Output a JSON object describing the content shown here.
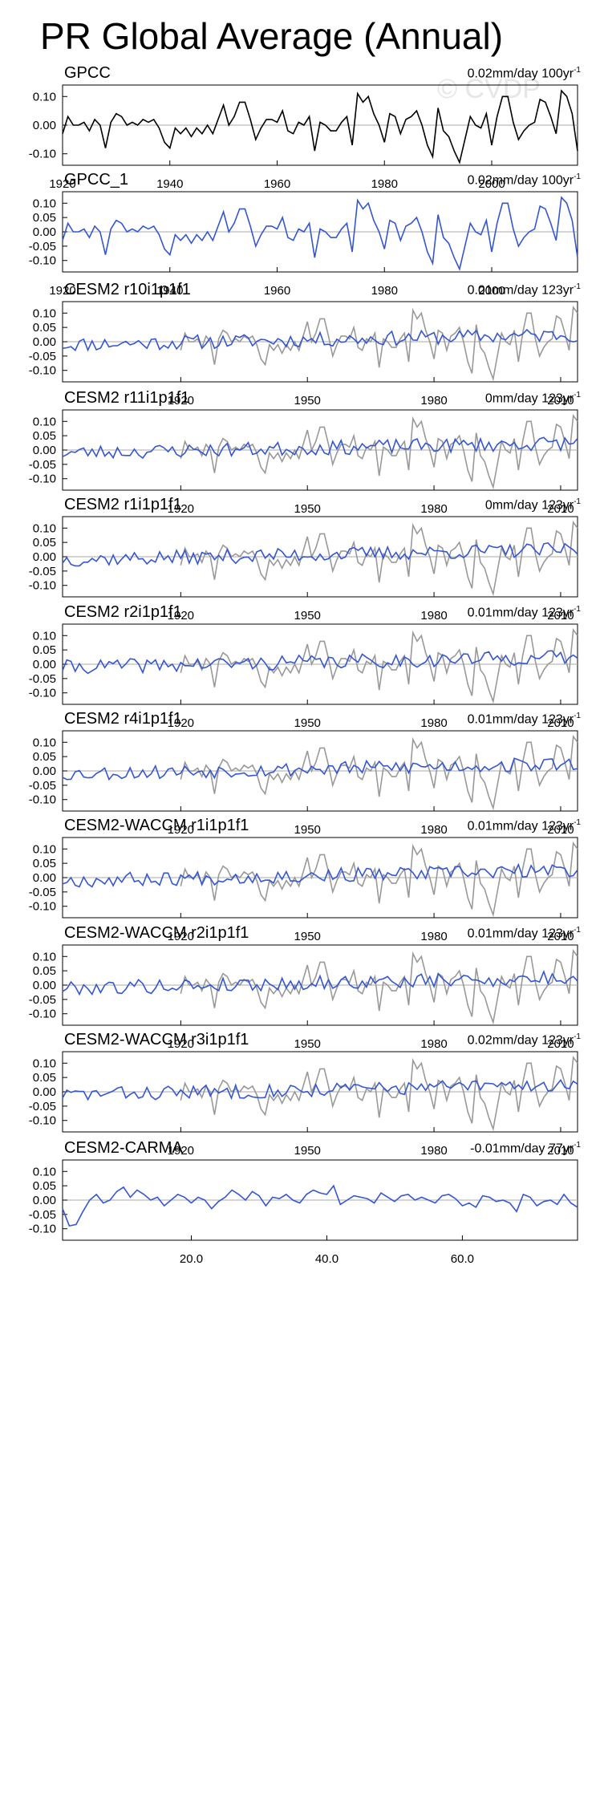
{
  "title": "PR Global Average (Annual)",
  "watermark": "© CVDP",
  "colors": {
    "model": "#3556d1",
    "obs": "#999999",
    "obs_first": "#000000",
    "zero": "#aaaaaa"
  },
  "chart_data": [
    {
      "type": "line",
      "title": "GPCC",
      "trend": "0.02mm/day 100yr",
      "trend_sup": "-1",
      "x_start": 1920,
      "x_end": 2016,
      "ylim": [
        -0.14,
        0.14
      ],
      "yticks": [
        "0.10",
        "0.00",
        "-0.10"
      ],
      "ytick_values": [
        0.1,
        0.0,
        -0.1
      ],
      "xticks": [
        "1920",
        "1940",
        "1960",
        "1980",
        "2000"
      ],
      "xtick_values": [
        1920,
        1940,
        1960,
        1980,
        2000
      ],
      "series": [
        {
          "name": "GPCC",
          "color": "obs_first",
          "values": []
        }
      ]
    },
    {
      "type": "line",
      "title": "GPCC_1",
      "trend": "0.02mm/day 100yr",
      "trend_sup": "-1",
      "x_start": 1920,
      "x_end": 2016,
      "ylim": [
        -0.14,
        0.14
      ],
      "yticks": [
        "0.10",
        "0.05",
        "0.00",
        "-0.05",
        "-0.10"
      ],
      "ytick_values": [
        0.1,
        0.05,
        0.0,
        -0.05,
        -0.1
      ],
      "xticks": [
        "1920",
        "1940",
        "1960",
        "1980",
        "2000"
      ],
      "xtick_values": [
        1920,
        1940,
        1960,
        1980,
        2000
      ],
      "series": [
        {
          "name": "GPCC_1",
          "color": "model",
          "values": []
        }
      ]
    },
    {
      "type": "line",
      "title": "CESM2 r10i1p1f1",
      "trend": "0.01mm/day 123yr",
      "trend_sup": "-1",
      "x_start": 1892,
      "x_end": 2014,
      "ylim": [
        -0.14,
        0.14
      ],
      "yticks": [
        "0.10",
        "0.05",
        "0.00",
        "-0.05",
        "-0.10"
      ],
      "ytick_values": [
        0.1,
        0.05,
        0.0,
        -0.05,
        -0.1
      ],
      "xticks": [
        "1920",
        "1950",
        "1980",
        "2010"
      ],
      "xtick_values": [
        1920,
        1950,
        1980,
        2010
      ],
      "series": [
        {
          "name": "GPCC",
          "color": "obs",
          "values": []
        },
        {
          "name": "CESM2 r10i1p1f1",
          "color": "model",
          "values": []
        }
      ]
    },
    {
      "type": "line",
      "title": "CESM2 r11i1p1f1",
      "trend": "0mm/day 123yr",
      "trend_sup": "-1",
      "x_start": 1892,
      "x_end": 2014,
      "ylim": [
        -0.14,
        0.14
      ],
      "yticks": [
        "0.10",
        "0.05",
        "0.00",
        "-0.05",
        "-0.10"
      ],
      "ytick_values": [
        0.1,
        0.05,
        0.0,
        -0.05,
        -0.1
      ],
      "xticks": [
        "1920",
        "1950",
        "1980",
        "2010"
      ],
      "xtick_values": [
        1920,
        1950,
        1980,
        2010
      ],
      "series": [
        {
          "name": "GPCC",
          "color": "obs",
          "values": []
        },
        {
          "name": "CESM2 r11i1p1f1",
          "color": "model",
          "values": []
        }
      ]
    },
    {
      "type": "line",
      "title": "CESM2 r1i1p1f1",
      "trend": "0mm/day 123yr",
      "trend_sup": "-1",
      "x_start": 1892,
      "x_end": 2014,
      "ylim": [
        -0.14,
        0.14
      ],
      "yticks": [
        "0.10",
        "0.05",
        "0.00",
        "-0.05",
        "-0.10"
      ],
      "ytick_values": [
        0.1,
        0.05,
        0.0,
        -0.05,
        -0.1
      ],
      "xticks": [
        "1920",
        "1950",
        "1980",
        "2010"
      ],
      "xtick_values": [
        1920,
        1950,
        1980,
        2010
      ],
      "series": [
        {
          "name": "GPCC",
          "color": "obs",
          "values": []
        },
        {
          "name": "CESM2 r1i1p1f1",
          "color": "model",
          "values": []
        }
      ]
    },
    {
      "type": "line",
      "title": "CESM2 r2i1p1f1",
      "trend": "0.01mm/day 123yr",
      "trend_sup": "-1",
      "x_start": 1892,
      "x_end": 2014,
      "ylim": [
        -0.14,
        0.14
      ],
      "yticks": [
        "0.10",
        "0.05",
        "0.00",
        "-0.05",
        "-0.10"
      ],
      "ytick_values": [
        0.1,
        0.05,
        0.0,
        -0.05,
        -0.1
      ],
      "xticks": [
        "1920",
        "1950",
        "1980",
        "2010"
      ],
      "xtick_values": [
        1920,
        1950,
        1980,
        2010
      ],
      "series": [
        {
          "name": "GPCC",
          "color": "obs",
          "values": []
        },
        {
          "name": "CESM2 r2i1p1f1",
          "color": "model",
          "values": []
        }
      ]
    },
    {
      "type": "line",
      "title": "CESM2 r4i1p1f1",
      "trend": "0.01mm/day 123yr",
      "trend_sup": "-1",
      "x_start": 1892,
      "x_end": 2014,
      "ylim": [
        -0.14,
        0.14
      ],
      "yticks": [
        "0.10",
        "0.05",
        "0.00",
        "-0.05",
        "-0.10"
      ],
      "ytick_values": [
        0.1,
        0.05,
        0.0,
        -0.05,
        -0.1
      ],
      "xticks": [
        "1920",
        "1950",
        "1980",
        "2010"
      ],
      "xtick_values": [
        1920,
        1950,
        1980,
        2010
      ],
      "series": [
        {
          "name": "GPCC",
          "color": "obs",
          "values": []
        },
        {
          "name": "CESM2 r4i1p1f1",
          "color": "model",
          "values": []
        }
      ]
    },
    {
      "type": "line",
      "title": "CESM2-WACCM r1i1p1f1",
      "trend": "0.01mm/day 123yr",
      "trend_sup": "-1",
      "x_start": 1892,
      "x_end": 2014,
      "ylim": [
        -0.14,
        0.14
      ],
      "yticks": [
        "0.10",
        "0.05",
        "0.00",
        "-0.05",
        "-0.10"
      ],
      "ytick_values": [
        0.1,
        0.05,
        0.0,
        -0.05,
        -0.1
      ],
      "xticks": [
        "1920",
        "1950",
        "1980",
        "2010"
      ],
      "xtick_values": [
        1920,
        1950,
        1980,
        2010
      ],
      "series": [
        {
          "name": "GPCC",
          "color": "obs",
          "values": []
        },
        {
          "name": "CESM2-WACCM r1i1p1f1",
          "color": "model",
          "values": []
        }
      ]
    },
    {
      "type": "line",
      "title": "CESM2-WACCM r2i1p1f1",
      "trend": "0.01mm/day 123yr",
      "trend_sup": "-1",
      "x_start": 1892,
      "x_end": 2014,
      "ylim": [
        -0.14,
        0.14
      ],
      "yticks": [
        "0.10",
        "0.05",
        "0.00",
        "-0.05",
        "-0.10"
      ],
      "ytick_values": [
        0.1,
        0.05,
        0.0,
        -0.05,
        -0.1
      ],
      "xticks": [
        "1920",
        "1950",
        "1980",
        "2010"
      ],
      "xtick_values": [
        1920,
        1950,
        1980,
        2010
      ],
      "series": [
        {
          "name": "GPCC",
          "color": "obs",
          "values": []
        },
        {
          "name": "CESM2-WACCM r2i1p1f1",
          "color": "model",
          "values": []
        }
      ]
    },
    {
      "type": "line",
      "title": "CESM2-WACCM r3i1p1f1",
      "trend": "0.02mm/day 123yr",
      "trend_sup": "-1",
      "x_start": 1892,
      "x_end": 2014,
      "ylim": [
        -0.14,
        0.14
      ],
      "yticks": [
        "0.10",
        "0.05",
        "0.00",
        "-0.05",
        "-0.10"
      ],
      "ytick_values": [
        0.1,
        0.05,
        0.0,
        -0.05,
        -0.1
      ],
      "xticks": [
        "1920",
        "1950",
        "1980",
        "2010"
      ],
      "xtick_values": [
        1920,
        1950,
        1980,
        2010
      ],
      "series": [
        {
          "name": "GPCC",
          "color": "obs",
          "values": []
        },
        {
          "name": "CESM2-WACCM r3i1p1f1",
          "color": "model",
          "values": []
        }
      ]
    },
    {
      "type": "line",
      "title": "CESM2-CARMA",
      "trend": "-0.01mm/day 77yr",
      "trend_sup": "-1",
      "x_start": 1,
      "x_end": 77,
      "ylim": [
        -0.14,
        0.14
      ],
      "yticks": [
        "0.10",
        "0.05",
        "0.00",
        "-0.05",
        "-0.10"
      ],
      "ytick_values": [
        0.1,
        0.05,
        0.0,
        -0.05,
        -0.1
      ],
      "xticks": [
        "20.0",
        "40.0",
        "60.0"
      ],
      "xtick_values": [
        20,
        40,
        60
      ],
      "series": [
        {
          "name": "CESM2-CARMA",
          "color": "model",
          "values": [
            -0.03,
            -0.09,
            -0.085,
            -0.04,
            0.0,
            0.02,
            -0.01,
            0.0,
            0.03,
            0.045,
            0.01,
            0.035,
            0.02,
            0.0,
            0.01,
            -0.02,
            0.0,
            0.02,
            0.01,
            -0.01,
            0.01,
            0.0,
            -0.03,
            -0.005,
            0.01,
            0.035,
            0.02,
            0.0,
            0.03,
            0.015,
            -0.02,
            0.01,
            0.005,
            0.02,
            0.0,
            -0.01,
            0.02,
            0.035,
            0.025,
            0.02,
            0.05,
            -0.015,
            0.0,
            0.015,
            0.01,
            0.005,
            -0.01,
            0.025,
            0.01,
            -0.005,
            0.015,
            0.02,
            0.0,
            0.01,
            0.0,
            -0.01,
            0.015,
            0.02,
            0.005,
            -0.02,
            -0.01,
            -0.025,
            0.015,
            0.01,
            -0.005,
            0.0,
            -0.01,
            -0.04,
            0.02,
            0.01,
            -0.02,
            -0.005,
            0.0,
            -0.015,
            0.02,
            -0.01,
            -0.025
          ]
        }
      ]
    }
  ]
}
